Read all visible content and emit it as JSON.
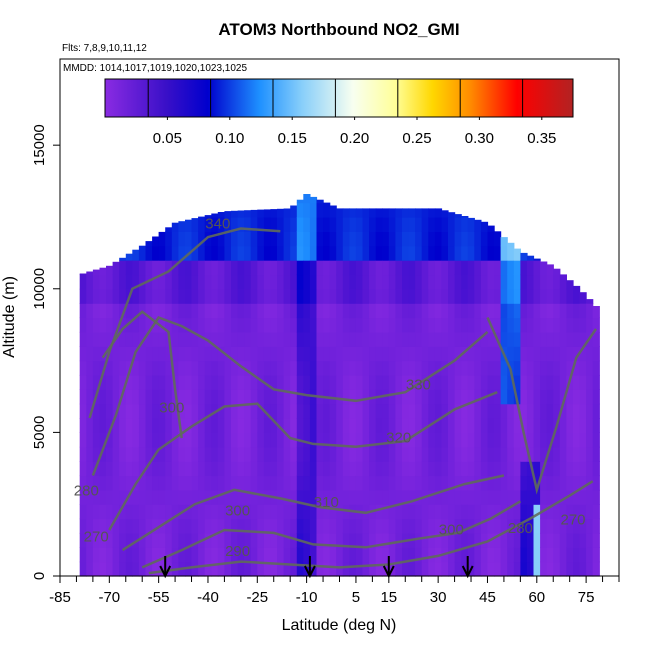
{
  "chart_data": {
    "type": "heatmap",
    "title": "ATOM3 Northbound NO2_GMI",
    "subtitle_flights": "Flts: 7,8,9,10,11,12",
    "subtitle_dates": "MMDD: 1014,1017,1019,1020,1023,1025",
    "xlabel": "Latitude (deg N)",
    "ylabel": "Altitude (m)",
    "xlim": [
      -85,
      85
    ],
    "ylim": [
      0,
      18000
    ],
    "x_tick_labels": [
      "-85",
      "-70",
      "-55",
      "-40",
      "-25",
      "-10",
      "5",
      "15",
      "30",
      "45",
      "60",
      "75"
    ],
    "x_tick_values": [
      -85,
      -70,
      -55,
      -40,
      -25,
      -10,
      5,
      15,
      30,
      45,
      60,
      75
    ],
    "y_tick_labels": [
      "0",
      "5000",
      "10000",
      "15000"
    ],
    "y_tick_values": [
      0,
      5000,
      10000,
      15000
    ],
    "colorbar": {
      "range": [
        0,
        0.375
      ],
      "tick_labels": [
        "0.05",
        "0.10",
        "0.15",
        "0.20",
        "0.25",
        "0.30",
        "0.35"
      ],
      "tick_values": [
        0.05,
        0.1,
        0.15,
        0.2,
        0.25,
        0.3,
        0.35
      ],
      "colors": [
        "#8a2be2",
        "#0000cd",
        "#1e90ff",
        "#00bfff",
        "#e0ffff",
        "#ffff99",
        "#ffd700",
        "#ff8c00",
        "#ff0000",
        "#b22222"
      ]
    },
    "contour_labels": [
      {
        "text": "340",
        "lat": -37,
        "alt": 12100
      },
      {
        "text": "330",
        "lat": 24,
        "alt": 6500
      },
      {
        "text": "320",
        "lat": 18,
        "alt": 4650
      },
      {
        "text": "310",
        "lat": -4,
        "alt": 2400
      },
      {
        "text": "300",
        "lat": -31,
        "alt": 2100
      },
      {
        "text": "300",
        "lat": 34,
        "alt": 1450
      },
      {
        "text": "300",
        "lat": -51,
        "alt": 5700
      },
      {
        "text": "290",
        "lat": -31,
        "alt": 700
      },
      {
        "text": "280",
        "lat": -77,
        "alt": 2800
      },
      {
        "text": "270",
        "lat": -74,
        "alt": 1200
      },
      {
        "text": "280",
        "lat": 55,
        "alt": 1500
      },
      {
        "text": "270",
        "lat": 71,
        "alt": 1800
      }
    ],
    "arrows_latitude": [
      -53,
      -9,
      15,
      39
    ]
  }
}
